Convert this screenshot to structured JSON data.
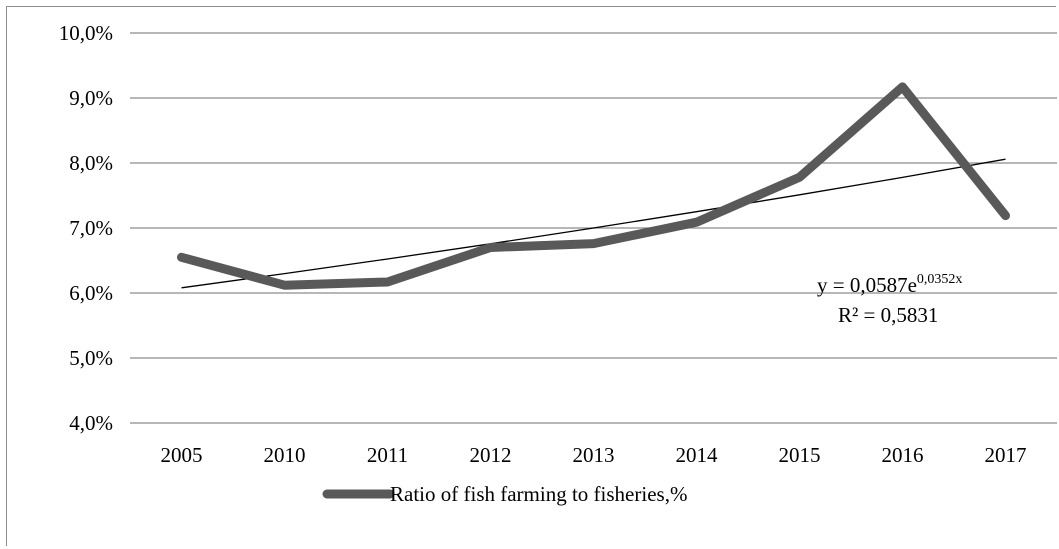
{
  "chart_data": {
    "type": "line",
    "categories": [
      "2005",
      "2010",
      "2011",
      "2012",
      "2013",
      "2014",
      "2015",
      "2016",
      "2017"
    ],
    "series": [
      {
        "name": "Ratio of fish farming to fisheries,%",
        "values": [
          6.55,
          6.12,
          6.17,
          6.7,
          6.76,
          7.09,
          7.78,
          9.17,
          7.19
        ],
        "color": "#595959"
      }
    ],
    "trendline": {
      "type": "exponential",
      "equation_prefix": "y = 0,0587e",
      "equation_exponent": "0,0352x",
      "r_squared": "R² = 0,5831",
      "coefficient": 0.0587,
      "rate": 0.0352,
      "color": "#000000"
    },
    "yticks": [
      "4,0%",
      "5,0%",
      "6,0%",
      "7,0%",
      "8,0%",
      "9,0%",
      "10,0%"
    ],
    "ylim": [
      4.0,
      10.0
    ],
    "grid": true,
    "legend_position": "bottom"
  }
}
